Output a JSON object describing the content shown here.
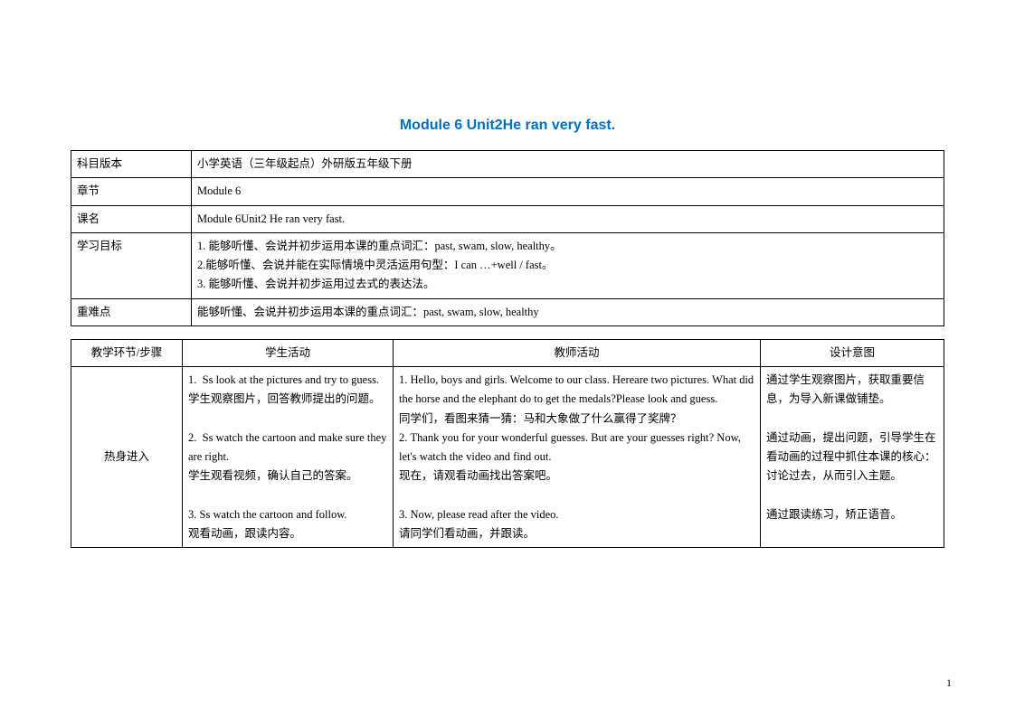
{
  "document": {
    "title": "Module 6 Unit2He ran very fast.",
    "page_number": "1"
  },
  "info": {
    "rows": [
      {
        "label": "科目版本",
        "value": "小学英语（三年级起点）外研版五年级下册"
      },
      {
        "label": "章节",
        "value": "Module 6"
      },
      {
        "label": "课名",
        "value": "Module 6Unit2 He ran very fast."
      },
      {
        "label": "学习目标",
        "value": "1. 能够听懂、会说并初步运用本课的重点词汇：past, swam, slow, healthy。\n2.能够听懂、会说并能在实际情境中灵活运用句型：I can …+well / fast。\n3. 能够听懂、会说并初步运用过去式的表达法。"
      },
      {
        "label": "重难点",
        "value": "能够听懂、会说并初步运用本课的重点词汇：past, swam, slow, healthy"
      }
    ]
  },
  "plan": {
    "headers": [
      "教学环节/步骤",
      "学生活动",
      "教师活动",
      "设计意图"
    ],
    "row1": {
      "step": "热身进入",
      "student": "1.  Ss look at the pictures and try to guess.\n学生观察图片，回答教师提出的问题。\n\n2.  Ss watch the cartoon and make sure they are right.\n学生观看视频，确认自己的答案。\n\n3. Ss watch the cartoon and follow.\n观看动画，跟读内容。",
      "teacher": "1. Hello, boys and girls. Welcome to our class. Hereare two pictures. What did the horse and the elephant do to get the medals?Please look and guess.\n同学们，看图来猜一猜：马和大象做了什么赢得了奖牌？\n2. Thank you for your wonderful guesses. But are your guesses right? Now, let's watch the video and find out.\n现在，请观看动画找出答案吧。\n\n3. Now, please read after the video.\n请同学们看动画，并跟读。",
      "intent": "通过学生观察图片，获取重要信息，为导入新课做铺垫。\n\n通过动画，提出问题，引导学生在看动画的过程中抓住本课的核心：讨论过去，从而引入主题。\n\n通过跟读练习，矫正语音。"
    }
  }
}
